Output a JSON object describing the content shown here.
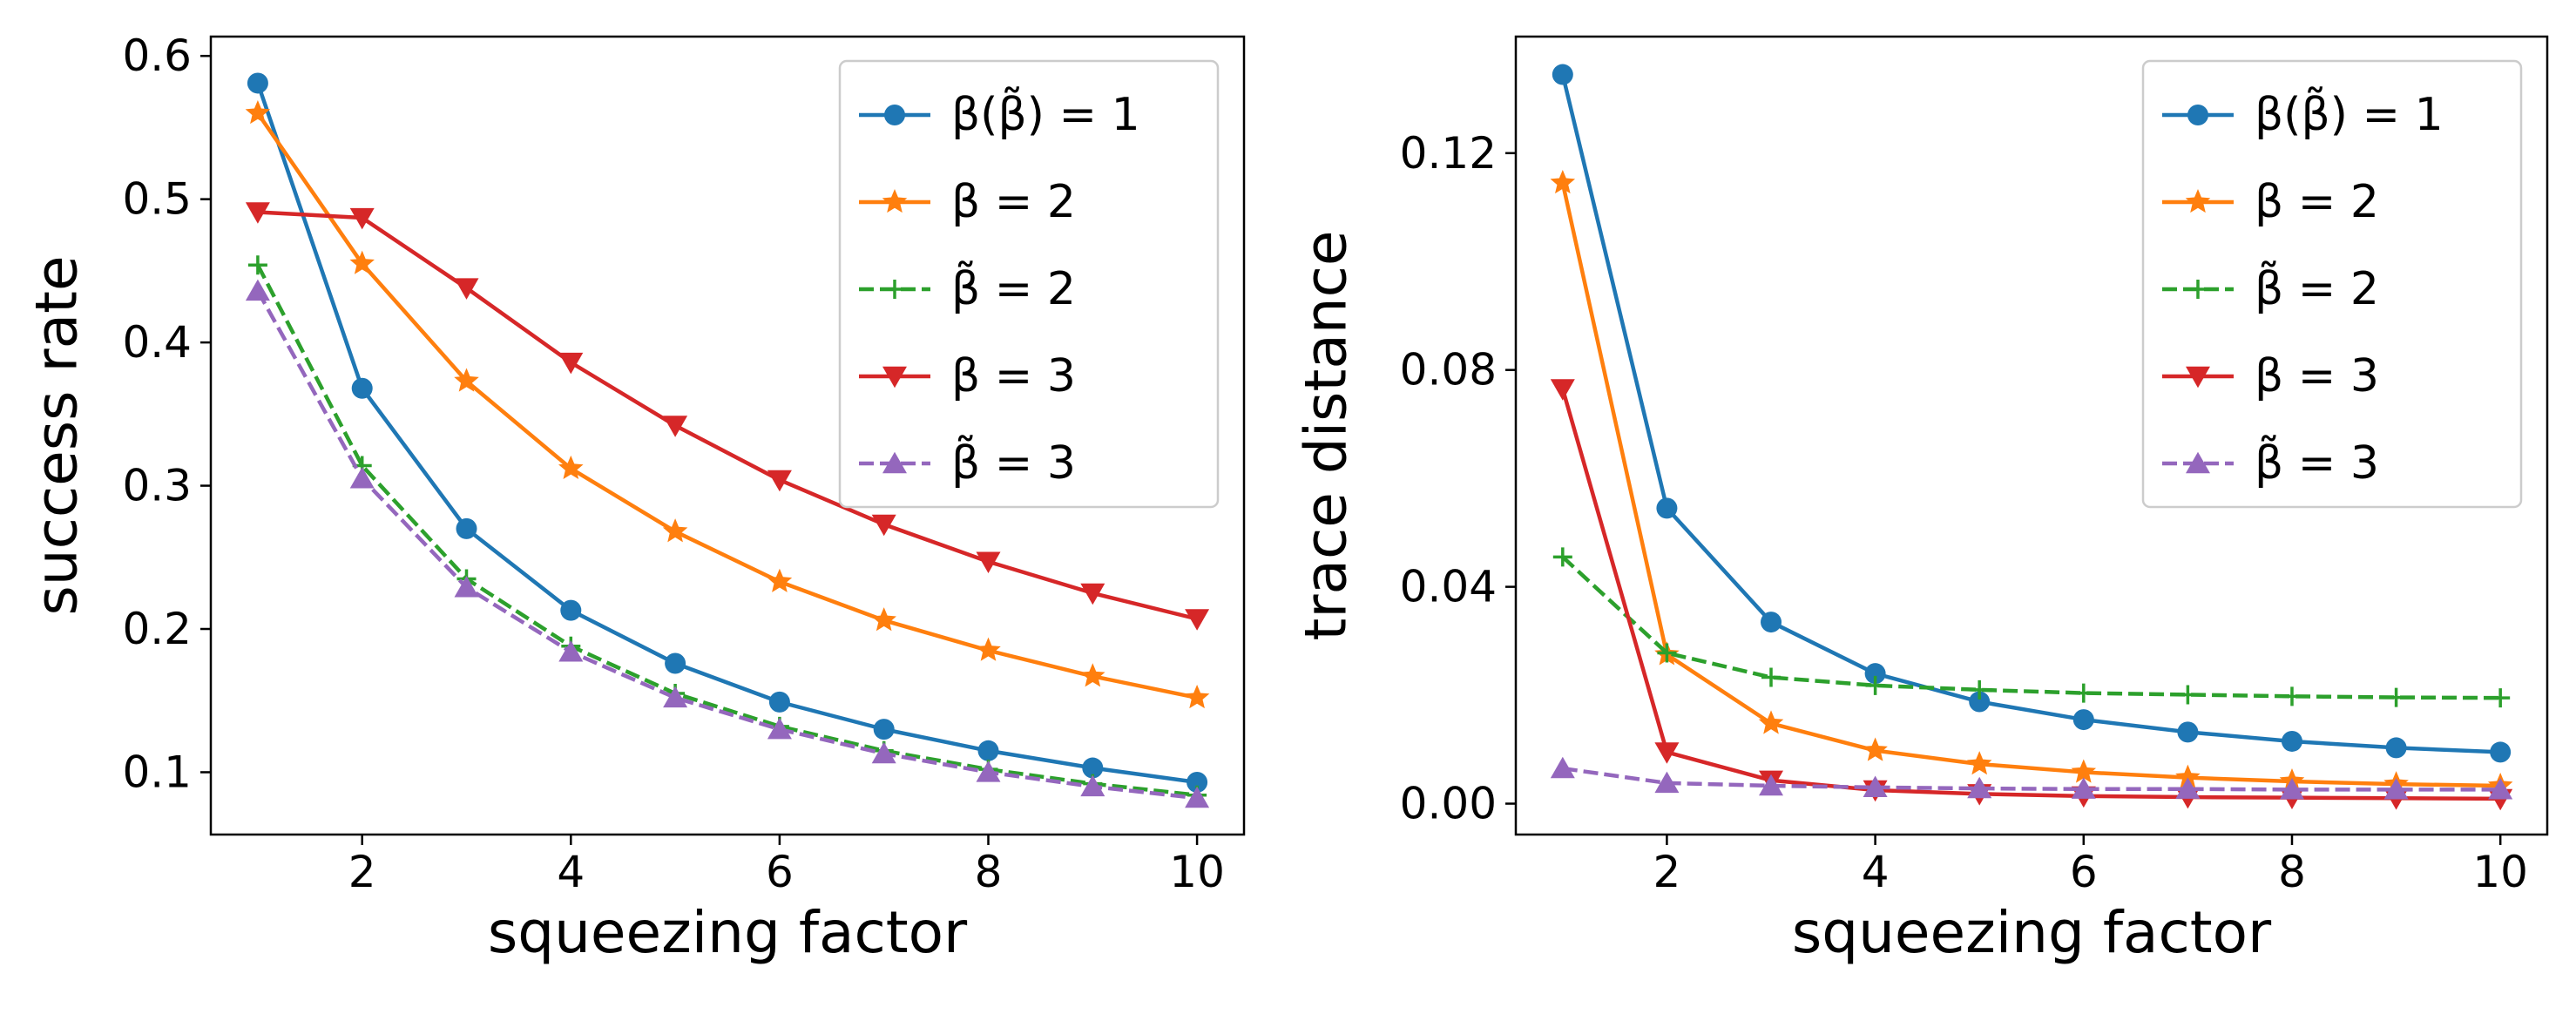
{
  "chart_data": [
    {
      "type": "line",
      "xlabel": "squeezing factor",
      "ylabel": "success rate",
      "xlim": [
        0.55,
        10.45
      ],
      "ylim": [
        0.0565,
        0.6135
      ],
      "xticks": [
        2,
        4,
        6,
        8,
        10
      ],
      "xtick_labels": [
        "2",
        "4",
        "6",
        "8",
        "10"
      ],
      "yticks": [
        0.1,
        0.2,
        0.3,
        0.4,
        0.5,
        0.6
      ],
      "ytick_labels": [
        "0.1",
        "0.2",
        "0.3",
        "0.4",
        "0.5",
        "0.6"
      ],
      "grid": false,
      "legend_position": "upper right",
      "x": [
        1,
        2,
        3,
        4,
        5,
        6,
        7,
        8,
        9,
        10
      ],
      "series": [
        {
          "name": "β(β̃) = 1",
          "color": "#1f77b4",
          "linestyle": "solid",
          "marker": "circle",
          "values": [
            0.581,
            0.368,
            0.27,
            0.213,
            0.176,
            0.149,
            0.13,
            0.115,
            0.103,
            0.093
          ]
        },
        {
          "name": "β = 2",
          "color": "#ff7f0e",
          "linestyle": "solid",
          "marker": "star",
          "values": [
            0.56,
            0.455,
            0.373,
            0.312,
            0.268,
            0.233,
            0.206,
            0.185,
            0.167,
            0.152
          ]
        },
        {
          "name": "β̃ = 2",
          "color": "#2ca02c",
          "linestyle": "dashed",
          "marker": "plus",
          "values": [
            0.454,
            0.314,
            0.235,
            0.188,
            0.155,
            0.132,
            0.115,
            0.102,
            0.092,
            0.084
          ]
        },
        {
          "name": "β = 3",
          "color": "#d62728",
          "linestyle": "solid",
          "marker": "triangle-down",
          "values": [
            0.491,
            0.487,
            0.438,
            0.386,
            0.342,
            0.304,
            0.273,
            0.247,
            0.225,
            0.207
          ]
        },
        {
          "name": "β̃ = 3",
          "color": "#9467bd",
          "linestyle": "dashed",
          "marker": "triangle-up",
          "values": [
            0.436,
            0.305,
            0.229,
            0.184,
            0.152,
            0.13,
            0.113,
            0.1,
            0.09,
            0.082
          ]
        }
      ]
    },
    {
      "type": "line",
      "xlabel": "squeezing factor",
      "ylabel": "trace distance",
      "xlim": [
        0.55,
        10.45
      ],
      "ylim": [
        -0.0057,
        0.1415
      ],
      "xticks": [
        2,
        4,
        6,
        8,
        10
      ],
      "xtick_labels": [
        "2",
        "4",
        "6",
        "8",
        "10"
      ],
      "yticks": [
        0.0,
        0.04,
        0.08,
        0.12
      ],
      "ytick_labels": [
        "0.00",
        "0.04",
        "0.08",
        "0.12"
      ],
      "grid": false,
      "legend_position": "upper right",
      "x": [
        1,
        2,
        3,
        4,
        5,
        6,
        7,
        8,
        9,
        10
      ],
      "series": [
        {
          "name": "β(β̃) = 1",
          "color": "#1f77b4",
          "linestyle": "solid",
          "marker": "circle",
          "values": [
            0.1345,
            0.0545,
            0.0335,
            0.024,
            0.0188,
            0.0155,
            0.0132,
            0.0115,
            0.0103,
            0.0095
          ]
        },
        {
          "name": "β = 2",
          "color": "#ff7f0e",
          "linestyle": "solid",
          "marker": "star",
          "values": [
            0.1145,
            0.0275,
            0.0148,
            0.0098,
            0.0073,
            0.0058,
            0.0048,
            0.0041,
            0.0036,
            0.0033
          ]
        },
        {
          "name": "β̃ = 2",
          "color": "#2ca02c",
          "linestyle": "dashed",
          "marker": "plus",
          "values": [
            0.0455,
            0.0278,
            0.0233,
            0.0218,
            0.021,
            0.0204,
            0.0201,
            0.0198,
            0.0196,
            0.0195
          ]
        },
        {
          "name": "β = 3",
          "color": "#d62728",
          "linestyle": "solid",
          "marker": "triangle-down",
          "values": [
            0.0765,
            0.0095,
            0.0043,
            0.0025,
            0.0018,
            0.0014,
            0.0012,
            0.0011,
            0.001,
            0.0009
          ]
        },
        {
          "name": "β̃ = 3",
          "color": "#9467bd",
          "linestyle": "dashed",
          "marker": "triangle-up",
          "values": [
            0.0065,
            0.0038,
            0.0033,
            0.003,
            0.0028,
            0.0027,
            0.0027,
            0.0026,
            0.0026,
            0.0026
          ]
        }
      ]
    }
  ]
}
